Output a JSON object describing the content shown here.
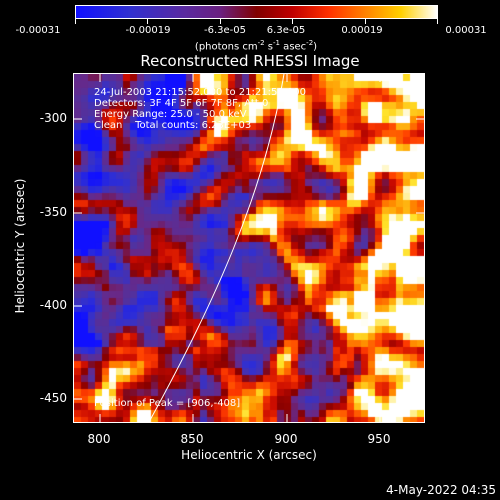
{
  "colorbar": {
    "ticks": [
      "-0.00031",
      "-0.00019",
      "-6.3e-05",
      "6.3e-05",
      "0.00019",
      "0.00031"
    ],
    "units_prefix": "(photons cm",
    "units_sup1": "-2",
    "units_mid1": " s",
    "units_sup2": "-1",
    "units_mid2": " asec",
    "units_sup3": "-2",
    "units_suffix": ")"
  },
  "title": "Reconstructed RHESSI Image",
  "info": {
    "line1": "24-Jul-2003 21:15:52.000 to 21:21:52.000",
    "line2": "Detectors: 3F 4F 5F 6F 7F 8F, Att 0",
    "line3": "Energy Range: 25.0 - 50.0 keV",
    "line4": "Clean    Total counts: 6.23E+03",
    "peak": "Position of Peak = [906,-408]"
  },
  "axes": {
    "xlabel": "Heliocentric X (arcsec)",
    "ylabel": "Heliocentric Y (arcsec)",
    "xticks": [
      "800",
      "850",
      "900",
      "950"
    ],
    "yticks": [
      "-300",
      "-350",
      "-400",
      "-450"
    ],
    "xlim": [
      786,
      976
    ],
    "ylim": [
      -474,
      -286
    ]
  },
  "timestamp": "4-May-2022 04:35",
  "colors": {
    "background": "#000000",
    "foreground": "#ffffff",
    "colormap": [
      "#1010ff",
      "#3030d0",
      "#5a2aa0",
      "#6a2080",
      "#800000",
      "#c00000",
      "#ff3000",
      "#ff8000",
      "#ffd000",
      "#ffffff"
    ]
  }
}
